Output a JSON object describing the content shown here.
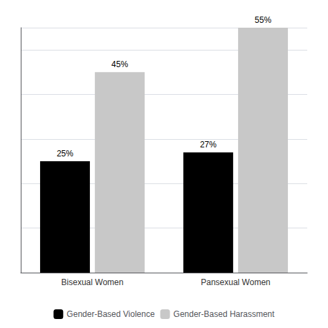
{
  "chart_data": {
    "type": "bar",
    "categories": [
      "Bisexual Women",
      "Pansexual Women"
    ],
    "series": [
      {
        "name": "Gender-Based Violence",
        "color": "#000000",
        "values": [
          25,
          27
        ],
        "value_labels": [
          "25%",
          "27%"
        ]
      },
      {
        "name": "Gender-Based Harassment",
        "color": "#c8c8c8",
        "values": [
          45,
          55
        ],
        "value_labels": [
          "45%",
          "55%"
        ]
      }
    ],
    "ylim": [
      0,
      55
    ],
    "yticks": [
      0,
      10,
      20,
      30,
      40,
      50
    ],
    "grid": true,
    "data_labels": true,
    "tick_labels": "x",
    "legend": "bottom"
  }
}
